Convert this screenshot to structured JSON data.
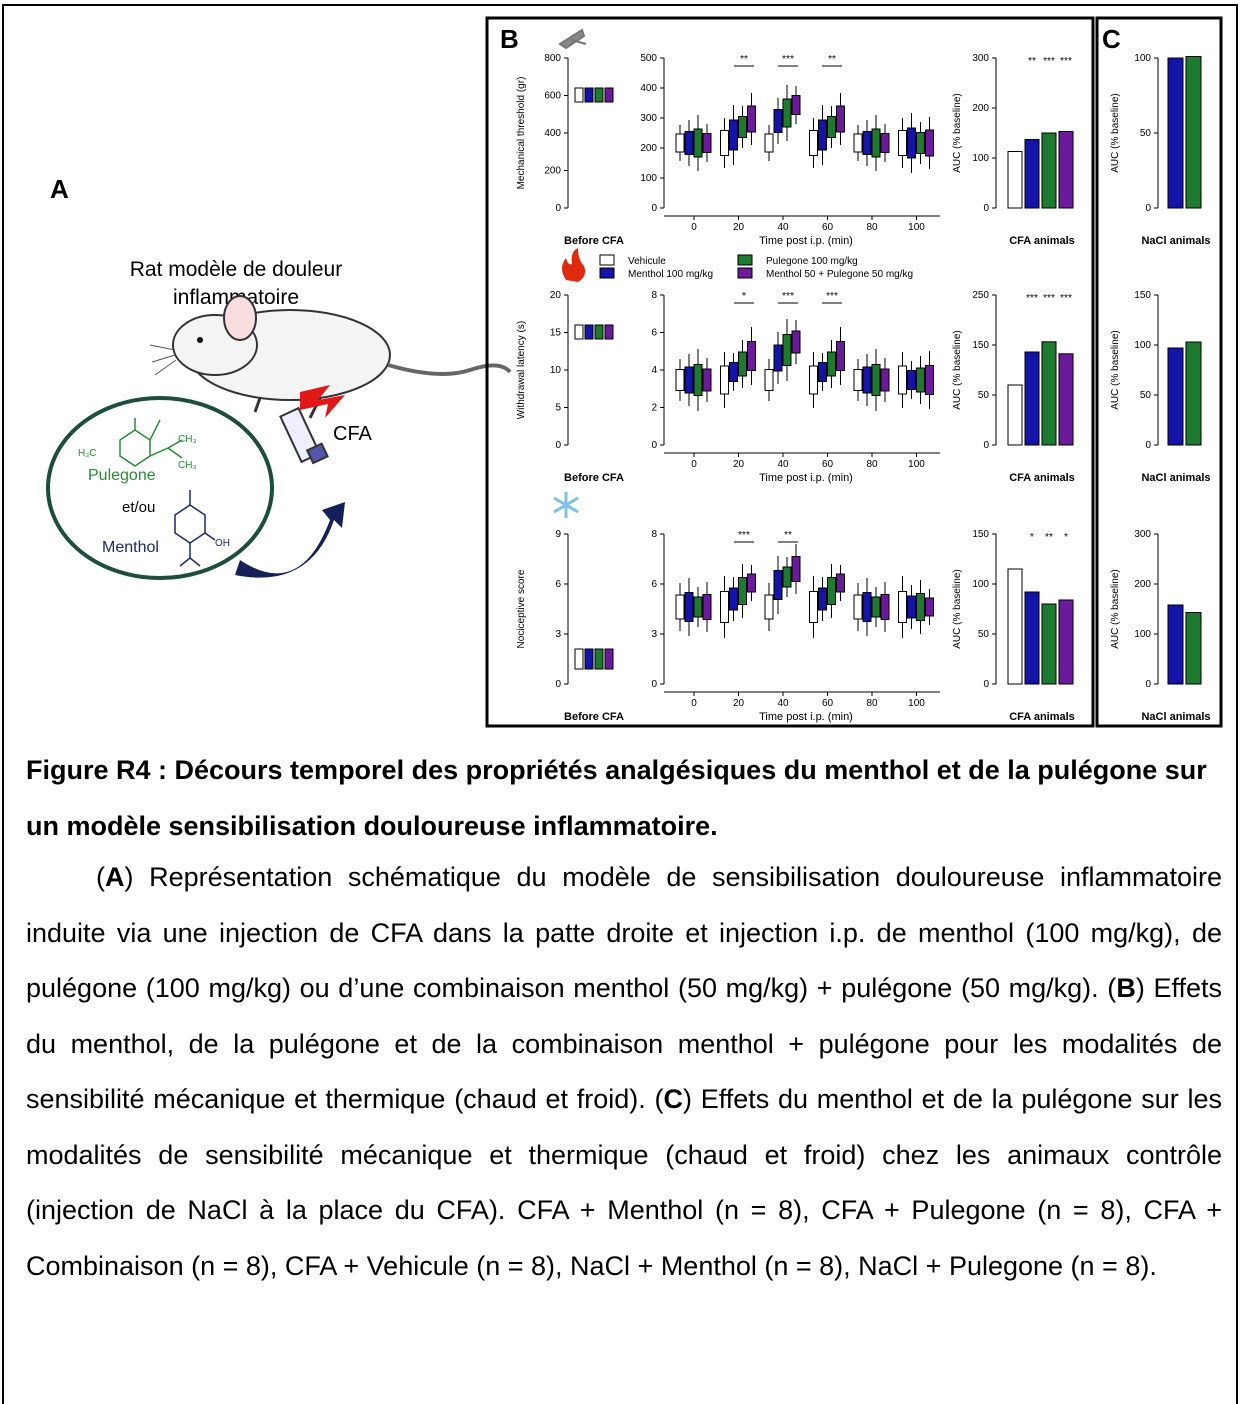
{
  "figure": {
    "panel_a": {
      "letter": "A",
      "model_title": "Rat modèle de douleur inflammatoire",
      "cfa_label": "CFA",
      "compound_1": "Pulegone",
      "conjunction": "et/ou",
      "compound_2": "Menthol",
      "chem_h3c": "H₃C",
      "chem_ch3_a": "CH₃",
      "chem_ch3_b": "CH₃",
      "chem_oh": "OH"
    },
    "panel_b": {
      "letter": "B",
      "before_label": "Before CFA",
      "time_label": "Time post i.p. (min)",
      "cfa_animals": "CFA animals",
      "auc_label": "AUC (% baseline)",
      "x_ticks": [
        "0",
        "20",
        "40",
        "60",
        "80",
        "100"
      ],
      "legend": [
        {
          "label": "Vehicule",
          "color": "#ffffff"
        },
        {
          "label": "Menthol 100 mg/kg",
          "color": "#1414a8"
        },
        {
          "label": "Pulegone 100 mg/kg",
          "color": "#1e7a2e"
        },
        {
          "label": "Menthol 50 + Pulegone 50 mg/kg",
          "color": "#6a1a9a"
        }
      ],
      "rows": [
        {
          "ylabel": "Mechanical threshold (gr)",
          "yticks": [
            "0",
            "200",
            "400",
            "600",
            "800"
          ],
          "time_yticks": [
            "0",
            "100",
            "200",
            "300",
            "400",
            "500"
          ],
          "auc_yticks": [
            "0",
            "100",
            "200",
            "300"
          ],
          "sig_time": [
            "**",
            "***",
            "**"
          ],
          "sig_auc": [
            "**",
            "***",
            "***"
          ],
          "auc_values": [
            113,
            137,
            150,
            153
          ]
        },
        {
          "ylabel": "Withdrawal latency (s)",
          "yticks": [
            "0",
            "5",
            "10",
            "15",
            "20"
          ],
          "time_yticks": [
            "0",
            "2",
            "4",
            "6",
            "8"
          ],
          "auc_yticks": [
            "0",
            "50",
            "150",
            "250"
          ],
          "sig_time": [
            "*",
            "***",
            "***"
          ],
          "sig_auc": [
            "***",
            "***",
            "***"
          ],
          "auc_values": [
            100,
            155,
            172,
            152
          ]
        },
        {
          "ylabel": "Nociceptive score",
          "yticks": [
            "0",
            "3",
            "6",
            "9"
          ],
          "time_yticks": [
            "0",
            "3",
            "6",
            "8"
          ],
          "auc_yticks": [
            "0",
            "50",
            "100",
            "150"
          ],
          "sig_time": [
            "***",
            "**"
          ],
          "sig_auc": [
            "*",
            "**",
            "*"
          ],
          "auc_values": [
            115,
            92,
            80,
            84
          ]
        }
      ]
    },
    "panel_c": {
      "letter": "C",
      "nacl_animals": "NaCl animals",
      "auc_label": "AUC (% baseline)",
      "rows": [
        {
          "yticks": [
            "0",
            "50",
            "100"
          ],
          "values": [
            100,
            101
          ]
        },
        {
          "yticks": [
            "0",
            "50",
            "100",
            "150"
          ],
          "values": [
            97,
            103
          ]
        },
        {
          "yticks": [
            "0",
            "100",
            "200",
            "300"
          ],
          "values": [
            158,
            143
          ]
        }
      ]
    }
  },
  "caption": {
    "title": "Figure R4 : Décours temporel des propriétés analgésiques du menthol et de la pulégone sur un modèle sensibilisation douloureuse inflammatoire.",
    "p1_a": "(",
    "p1_letter_a": "A",
    "p1_text_a": ") Représentation schématique du modèle de sensibilisation douloureuse inflammatoire induite via une injection de CFA dans la patte droite et injection i.p. de menthol (100 mg/kg), de pulégone (100 mg/kg) ou d’une combinaison menthol (50 mg/kg) + pulégone (50 mg/kg). (",
    "p1_letter_b": "B",
    "p1_text_b": ") Effets du menthol, de la pulégone et de la combinaison menthol + pulégone pour les modalités de sensibilité mécanique et thermique (chaud et froid). (",
    "p1_letter_c": "C",
    "p1_text_c": ") Effets du menthol et de la pulégone sur les modalités de sensibilité mécanique et thermique (chaud et froid) chez les animaux contrôle (injection de NaCl à la place du CFA). CFA + Menthol (n = 8), CFA + Pulegone (n = 8), CFA + Combinaison (n = 8), CFA + Vehicule (n = 8), NaCl + Menthol (n = 8), NaCl + Pulegone (n = 8)."
  }
}
